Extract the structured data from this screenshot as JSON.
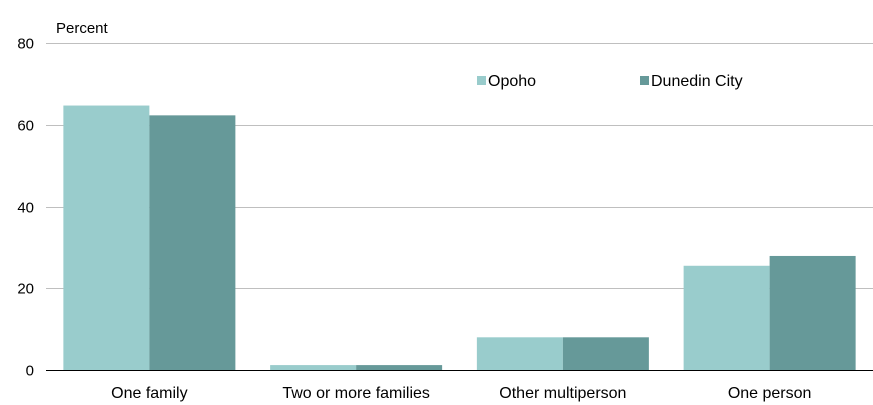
{
  "chart_data": {
    "type": "bar",
    "ylabel": "Percent",
    "ylim": [
      0,
      80
    ],
    "yticks": [
      0,
      20,
      40,
      60,
      80
    ],
    "categories": [
      "One family",
      "Two or more families",
      "Other multiperson",
      "One person"
    ],
    "series": [
      {
        "name": "Opoho",
        "color": "#99cccc",
        "values": [
          64.7,
          1.2,
          8.0,
          25.5
        ]
      },
      {
        "name": "Dunedin City",
        "color": "#669999",
        "values": [
          62.3,
          1.2,
          8.0,
          27.9
        ]
      }
    ],
    "grid": true,
    "legend_position": "top-right"
  }
}
